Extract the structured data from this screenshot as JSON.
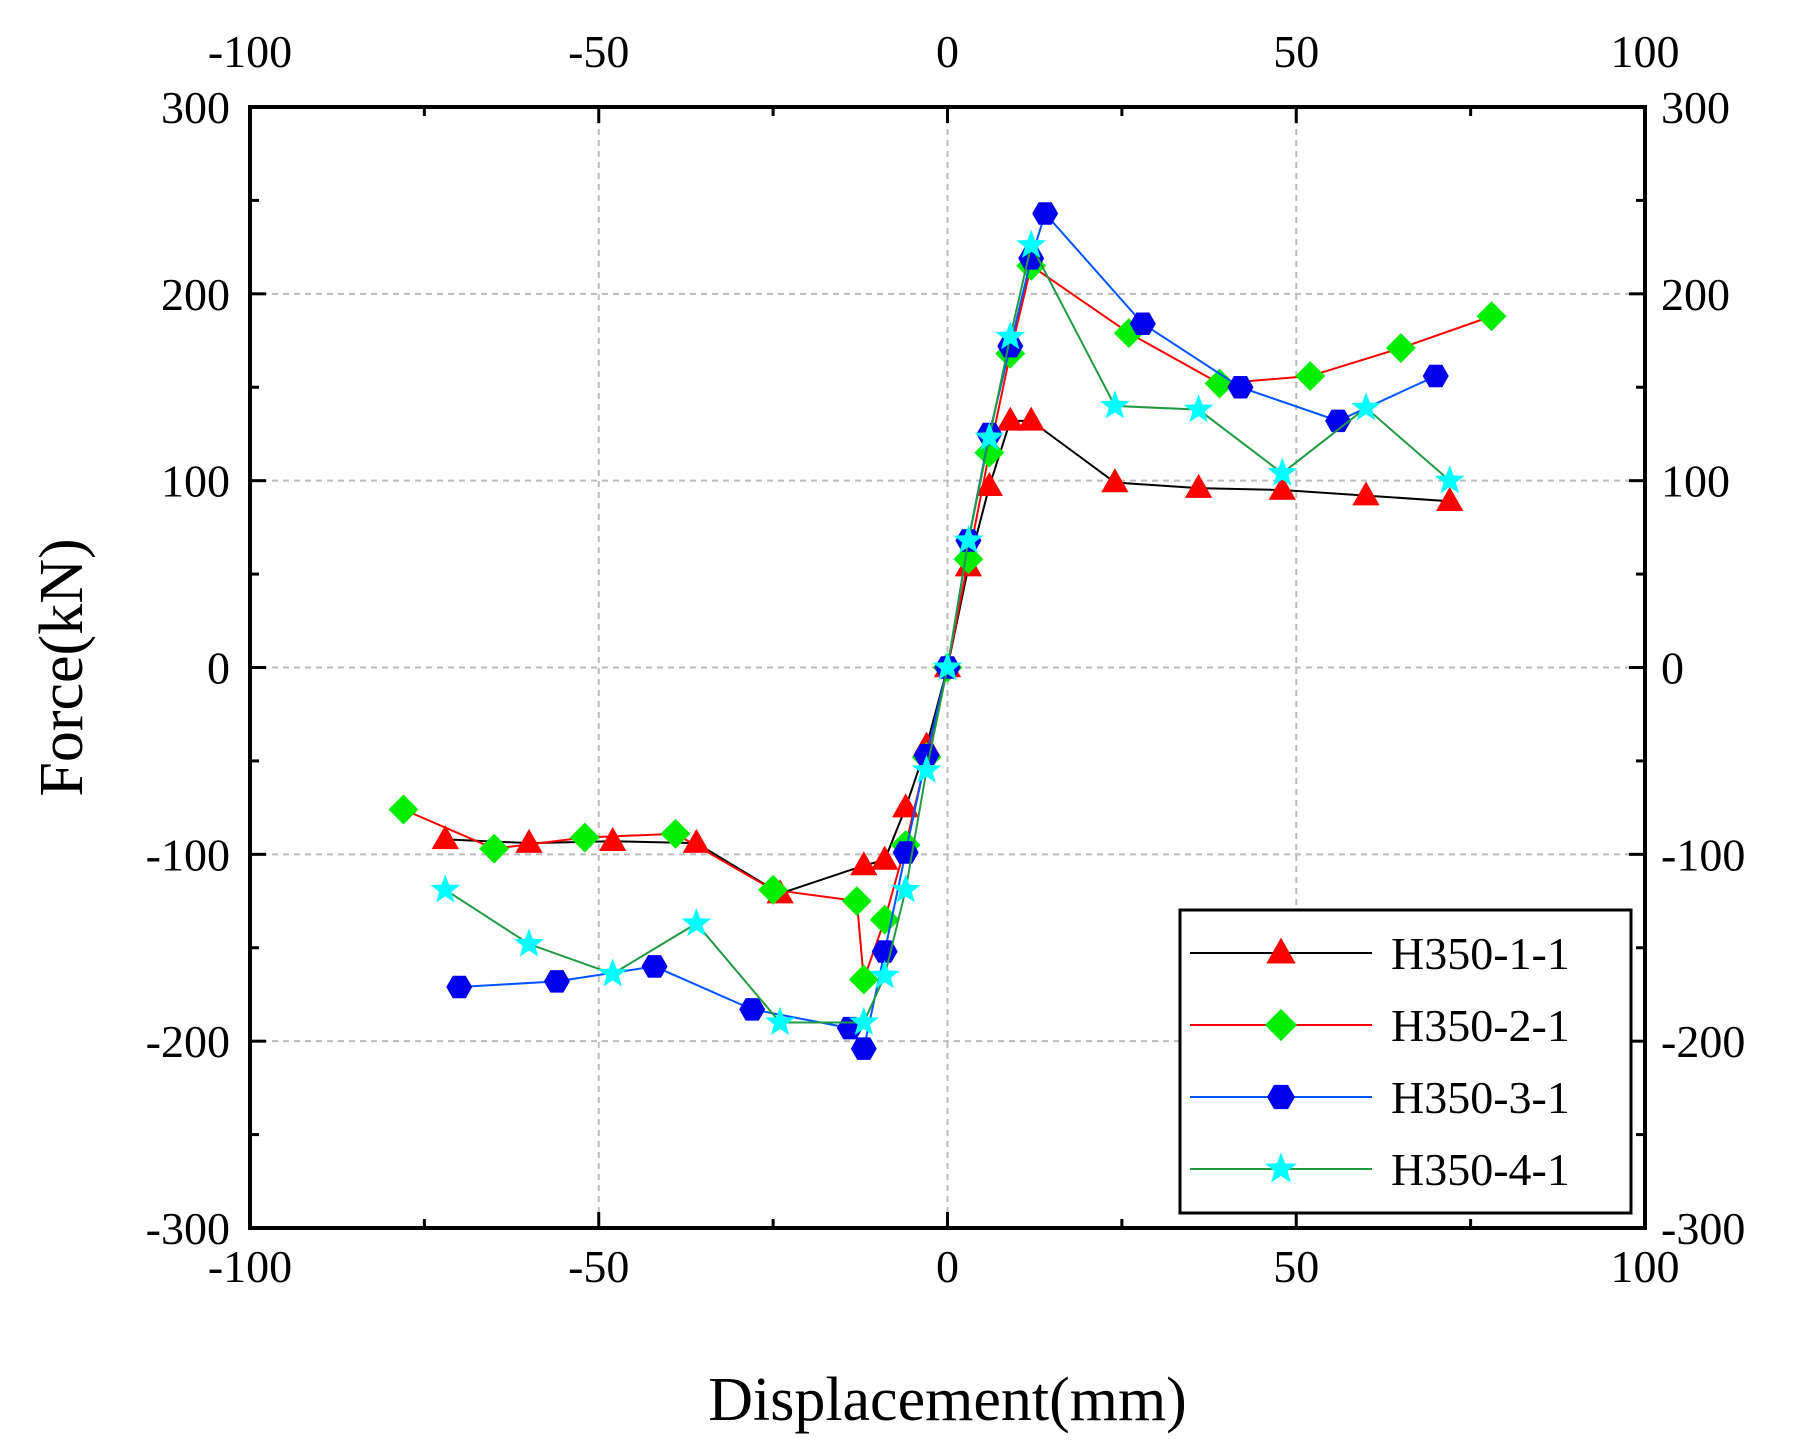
{
  "chart_data": {
    "type": "scatter",
    "title": "",
    "xlabel": "Displacement(mm)",
    "ylabel": "Force(kN)",
    "xlim": [
      -100,
      100
    ],
    "ylim": [
      -300,
      300
    ],
    "x_ticks": [
      -100,
      -50,
      0,
      50,
      100
    ],
    "y_ticks": [
      -300,
      -200,
      -100,
      0,
      100,
      200,
      300
    ],
    "x_tick_labels": [
      "-100",
      "-50",
      "0",
      "50",
      "100"
    ],
    "y_tick_labels": [
      "-300",
      "-200",
      "-100",
      "0",
      "100",
      "200",
      "300"
    ],
    "top_x_tick_labels": [
      "-100",
      "-50",
      "0",
      "50",
      "100"
    ],
    "right_y_tick_labels": [
      "-300",
      "-200",
      "-100",
      "0",
      "100",
      "200",
      "300"
    ],
    "grid": true,
    "legend_position": "bottom-right",
    "series": [
      {
        "name": "H350-1-1",
        "line_color": "#000000",
        "marker_color": "#ff0000",
        "marker": "triangle",
        "x": [
          -72,
          -60,
          -48,
          -36,
          -24,
          -12,
          -9,
          -6,
          -3,
          0,
          3,
          6,
          9,
          12,
          24,
          36,
          48,
          60,
          72
        ],
        "y": [
          -92,
          -94,
          -93,
          -94,
          -121,
          -106,
          -103,
          -75,
          -42,
          0,
          54,
          97,
          132,
          132,
          99,
          96,
          95,
          92,
          89
        ]
      },
      {
        "name": "H350-2-1",
        "line_color": "#ff0000",
        "marker_color": "#00ee00",
        "marker": "diamond",
        "x": [
          -78,
          -65,
          -52,
          -39,
          -25,
          -13,
          -12,
          -9,
          -6,
          -3,
          0,
          3,
          6,
          9,
          12,
          26,
          39,
          52,
          65,
          78
        ],
        "y": [
          -76,
          -97,
          -91,
          -89,
          -119,
          -125,
          -167,
          -135,
          -95,
          -48,
          0,
          58,
          115,
          168,
          215,
          179,
          152,
          156,
          171,
          188
        ]
      },
      {
        "name": "H350-3-1",
        "line_color": "#0055ff",
        "marker_color": "#0000ee",
        "marker": "hexagon",
        "x": [
          -70,
          -56,
          -42,
          -28,
          -14,
          -12,
          -9,
          -6,
          -3,
          0,
          3,
          6,
          9,
          12,
          14,
          28,
          42,
          56,
          70
        ],
        "y": [
          -171,
          -168,
          -160,
          -183,
          -193,
          -204,
          -152,
          -99,
          -47,
          0,
          68,
          125,
          172,
          219,
          243,
          184,
          150,
          132,
          156
        ]
      },
      {
        "name": "H350-4-1",
        "line_color": "#229944",
        "marker_color": "#00ffff",
        "marker": "star",
        "x": [
          -72,
          -60,
          -48,
          -36,
          -24,
          -12,
          -9,
          -6,
          -3,
          0,
          3,
          6,
          9,
          12,
          24,
          36,
          48,
          60,
          72
        ],
        "y": [
          -119,
          -148,
          -164,
          -137,
          -190,
          -190,
          -165,
          -119,
          -55,
          0,
          68,
          123,
          177,
          226,
          140,
          138,
          104,
          139,
          100
        ]
      }
    ]
  }
}
